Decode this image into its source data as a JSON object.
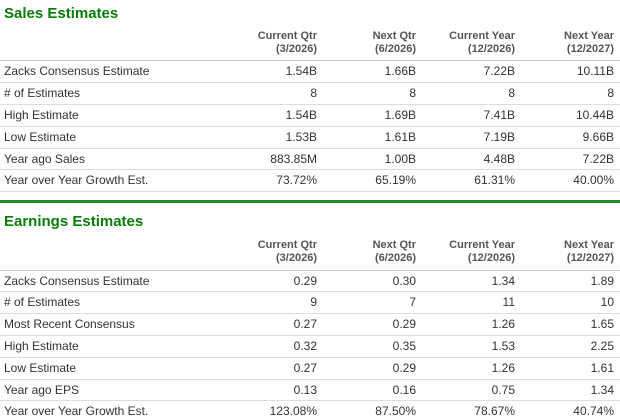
{
  "colors": {
    "title_green": "#077d07",
    "divider_green": "#228b22",
    "header_text": "#555555",
    "body_text": "#333333",
    "row_border": "#dddddd",
    "header_border": "#c9c9c9",
    "background": "#ffffff"
  },
  "sections": [
    {
      "title": "Sales Estimates",
      "columns": [
        {
          "label": "Current Qtr",
          "period": "(3/2026)"
        },
        {
          "label": "Next Qtr",
          "period": "(6/2026)"
        },
        {
          "label": "Current Year",
          "period": "(12/2026)"
        },
        {
          "label": "Next Year",
          "period": "(12/2027)"
        }
      ],
      "rows": [
        {
          "label": "Zacks Consensus Estimate",
          "values": [
            "1.54B",
            "1.66B",
            "7.22B",
            "10.11B"
          ]
        },
        {
          "label": "# of Estimates",
          "values": [
            "8",
            "8",
            "8",
            "8"
          ]
        },
        {
          "label": "High Estimate",
          "values": [
            "1.54B",
            "1.69B",
            "7.41B",
            "10.44B"
          ]
        },
        {
          "label": "Low Estimate",
          "values": [
            "1.53B",
            "1.61B",
            "7.19B",
            "9.66B"
          ]
        },
        {
          "label": "Year ago Sales",
          "values": [
            "883.85M",
            "1.00B",
            "4.48B",
            "7.22B"
          ]
        },
        {
          "label": "Year over Year Growth Est.",
          "values": [
            "73.72%",
            "65.19%",
            "61.31%",
            "40.00%"
          ]
        }
      ]
    },
    {
      "title": "Earnings Estimates",
      "columns": [
        {
          "label": "Current Qtr",
          "period": "(3/2026)"
        },
        {
          "label": "Next Qtr",
          "period": "(6/2026)"
        },
        {
          "label": "Current Year",
          "period": "(12/2026)"
        },
        {
          "label": "Next Year",
          "period": "(12/2027)"
        }
      ],
      "rows": [
        {
          "label": "Zacks Consensus Estimate",
          "values": [
            "0.29",
            "0.30",
            "1.34",
            "1.89"
          ]
        },
        {
          "label": "# of Estimates",
          "values": [
            "9",
            "7",
            "11",
            "10"
          ]
        },
        {
          "label": "Most Recent Consensus",
          "values": [
            "0.27",
            "0.29",
            "1.26",
            "1.65"
          ]
        },
        {
          "label": "High Estimate",
          "values": [
            "0.32",
            "0.35",
            "1.53",
            "2.25"
          ]
        },
        {
          "label": "Low Estimate",
          "values": [
            "0.27",
            "0.29",
            "1.26",
            "1.61"
          ]
        },
        {
          "label": "Year ago EPS",
          "values": [
            "0.13",
            "0.16",
            "0.75",
            "1.34"
          ]
        },
        {
          "label": "Year over Year Growth Est.",
          "values": [
            "123.08%",
            "87.50%",
            "78.67%",
            "40.74%"
          ]
        }
      ]
    }
  ]
}
